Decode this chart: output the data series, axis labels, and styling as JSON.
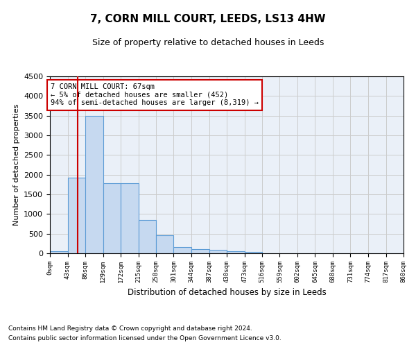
{
  "title": "7, CORN MILL COURT, LEEDS, LS13 4HW",
  "subtitle": "Size of property relative to detached houses in Leeds",
  "xlabel": "Distribution of detached houses by size in Leeds",
  "ylabel": "Number of detached properties",
  "bar_edges": [
    0,
    43,
    86,
    129,
    172,
    215,
    258,
    301,
    344,
    387,
    430,
    473,
    516,
    559,
    602,
    645,
    688,
    731,
    774,
    817,
    860
  ],
  "bar_heights": [
    45,
    1920,
    3500,
    1780,
    1780,
    840,
    460,
    160,
    100,
    80,
    60,
    40,
    0,
    0,
    0,
    0,
    0,
    0,
    0,
    0
  ],
  "bar_color": "#c6d9f0",
  "bar_edge_color": "#5b9bd5",
  "property_line_x": 67,
  "property_line_color": "#cc0000",
  "annotation_text": "7 CORN MILL COURT: 67sqm\n← 5% of detached houses are smaller (452)\n94% of semi-detached houses are larger (8,319) →",
  "annotation_box_color": "#cc0000",
  "ylim": [
    0,
    4500
  ],
  "yticks": [
    0,
    500,
    1000,
    1500,
    2000,
    2500,
    3000,
    3500,
    4000,
    4500
  ],
  "tick_labels": [
    "0sqm",
    "43sqm",
    "86sqm",
    "129sqm",
    "172sqm",
    "215sqm",
    "258sqm",
    "301sqm",
    "344sqm",
    "387sqm",
    "430sqm",
    "473sqm",
    "516sqm",
    "559sqm",
    "602sqm",
    "645sqm",
    "688sqm",
    "731sqm",
    "774sqm",
    "817sqm",
    "860sqm"
  ],
  "footer_line1": "Contains HM Land Registry data © Crown copyright and database right 2024.",
  "footer_line2": "Contains public sector information licensed under the Open Government Licence v3.0.",
  "bg_color": "#ffffff",
  "grid_color": "#cccccc",
  "axes_bg_color": "#eaf0f8"
}
